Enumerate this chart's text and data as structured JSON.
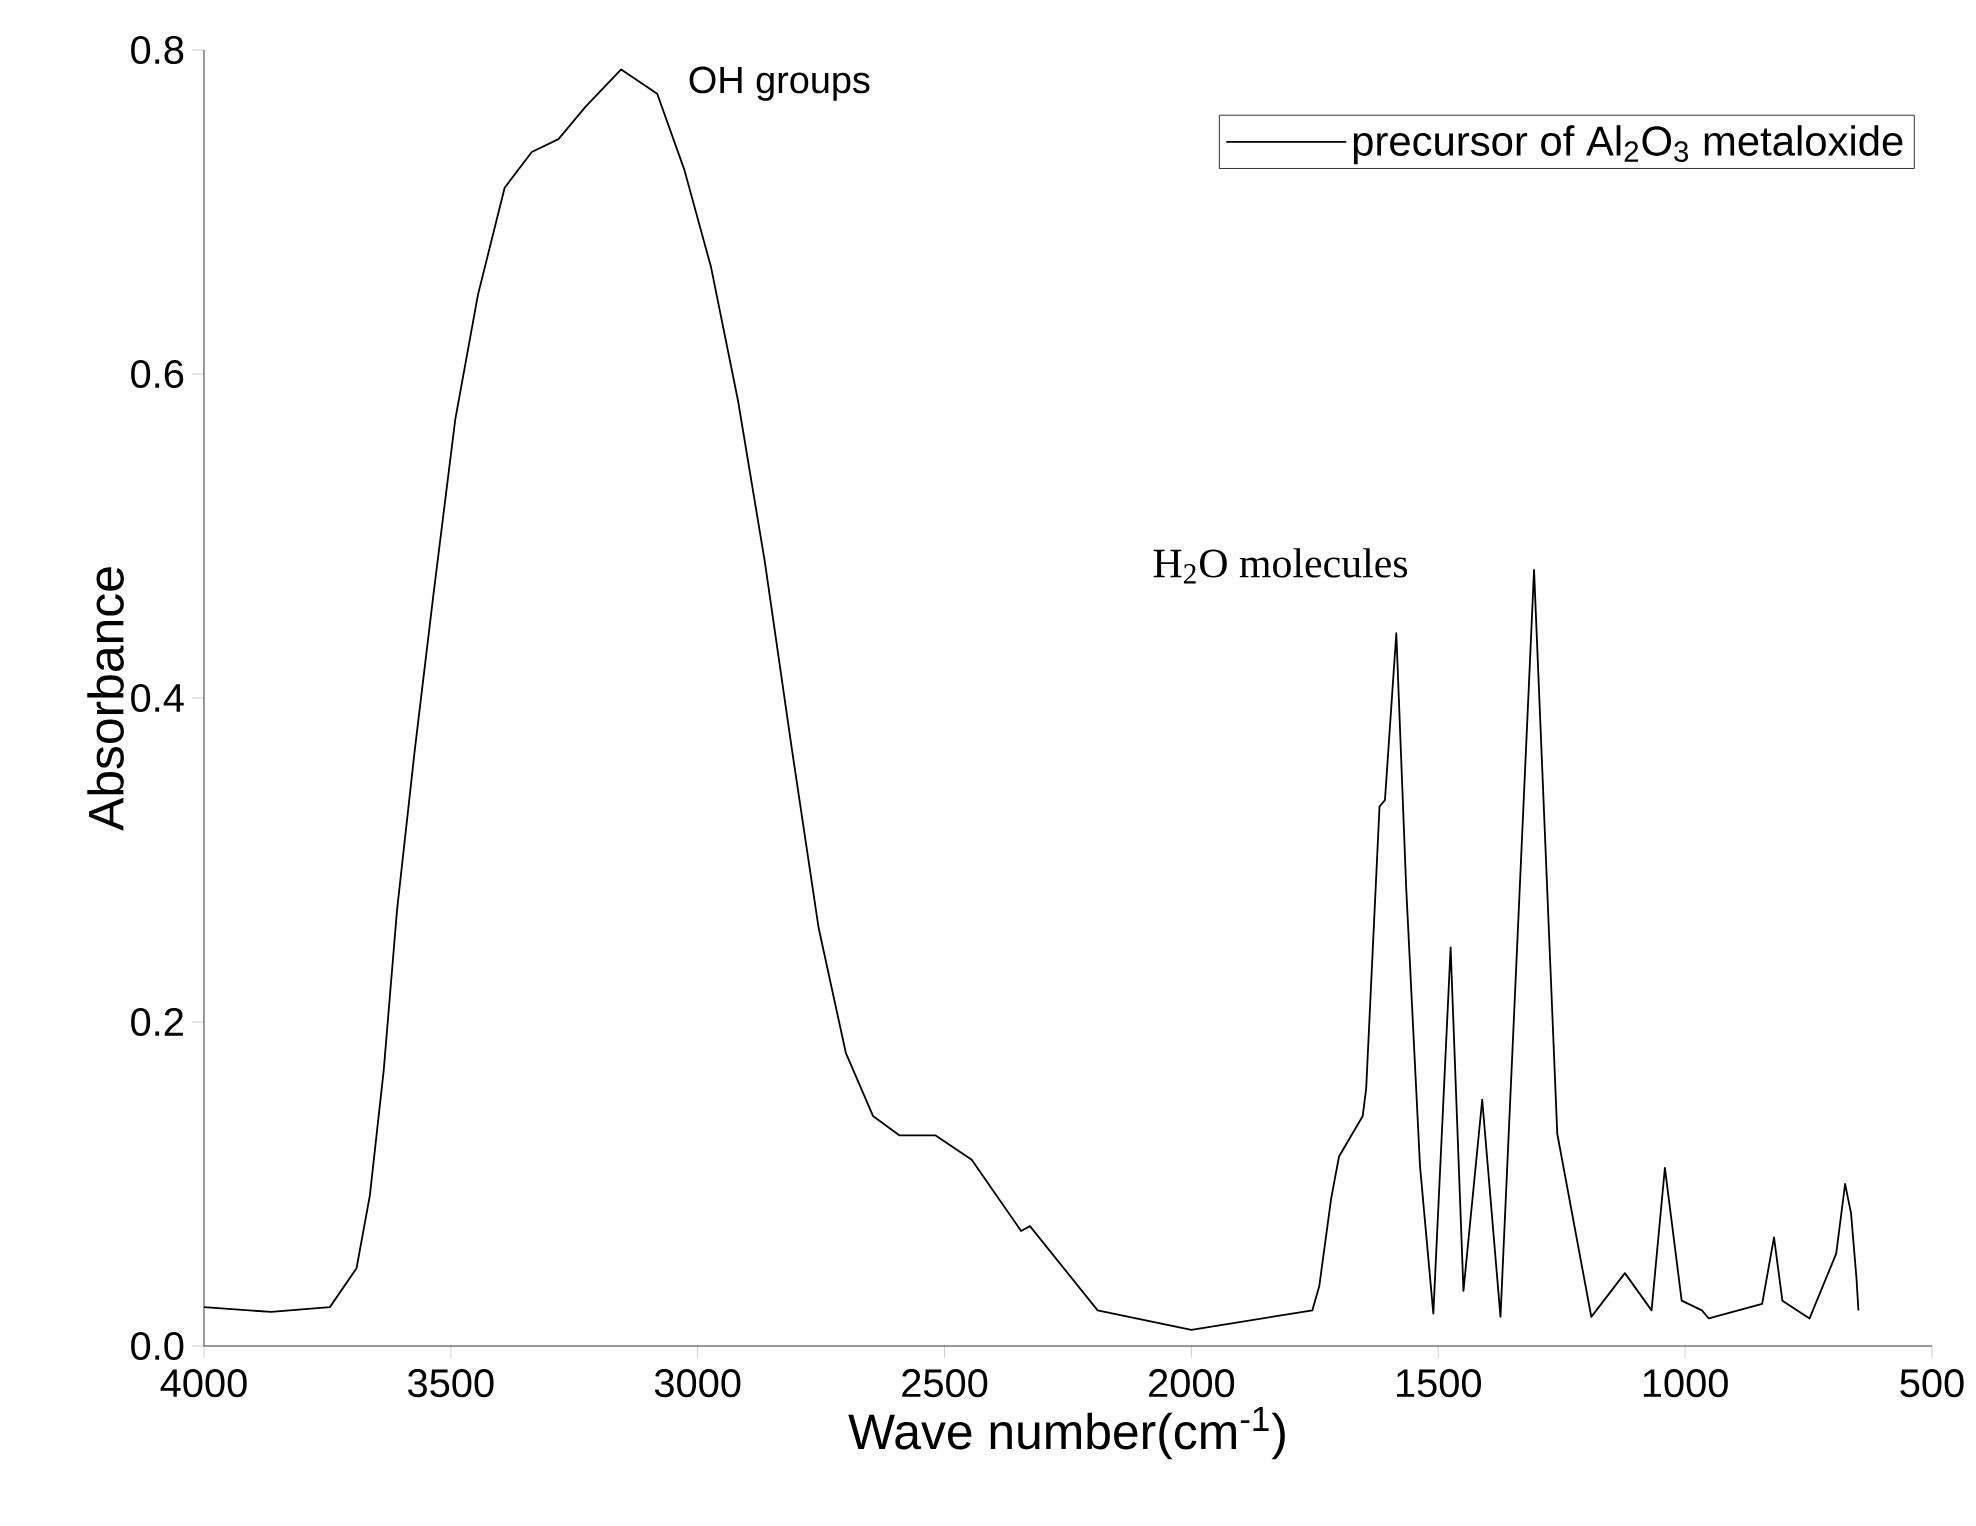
{
  "chart_data": {
    "type": "line",
    "xlabel": "Wave number(cm$^{-1}$)",
    "ylabel": "Absorbance",
    "xlim": [
      4000,
      500
    ],
    "ylim": [
      0,
      0.8
    ],
    "xticks": [
      4000,
      3500,
      3000,
      2500,
      2000,
      1500,
      1000,
      500
    ],
    "yticks": [
      {
        "value": 0,
        "label": "0.0"
      },
      0.2,
      0.4,
      0.6,
      0.8
    ],
    "legend": "top right",
    "grid": false,
    "marker": "none",
    "line_style": "solid",
    "annotations": [
      "OH groups",
      "H$_{2}$O molecules"
    ],
    "series": [
      {
        "name": "precursor of Al$_{2}$O$_{3}$ metaloxide",
        "color": "#000000",
        "x": [
          4000,
          3864,
          3745,
          3691,
          3664,
          3636,
          3609,
          3573,
          3536,
          3491,
          3445,
          3391,
          3336,
          3282,
          3227,
          3155,
          3082,
          3027,
          2973,
          2918,
          2864,
          2809,
          2755,
          2700,
          2645,
          2591,
          2518,
          2445,
          2345,
          2327,
          2190,
          2000,
          1755,
          1741,
          1717,
          1701,
          1653,
          1646,
          1619,
          1608,
          1585,
          1565,
          1537,
          1510,
          1475,
          1449,
          1411,
          1374,
          1306,
          1259,
          1190,
          1122,
          1068,
          1041,
          1007,
          966,
          952,
          844,
          820,
          803,
          748,
          694,
          676,
          664,
          653,
          649
        ],
        "values": [
          0.024,
          0.021,
          0.024,
          0.048,
          0.093,
          0.17,
          0.269,
          0.368,
          0.462,
          0.572,
          0.649,
          0.715,
          0.737,
          0.745,
          0.765,
          0.788,
          0.773,
          0.726,
          0.666,
          0.583,
          0.484,
          0.368,
          0.258,
          0.181,
          0.142,
          0.13,
          0.13,
          0.115,
          0.071,
          0.074,
          0.022,
          0.01,
          0.022,
          0.037,
          0.091,
          0.117,
          0.142,
          0.159,
          0.333,
          0.337,
          0.44,
          0.283,
          0.111,
          0.02,
          0.246,
          0.034,
          0.152,
          0.018,
          0.479,
          0.131,
          0.018,
          0.045,
          0.022,
          0.11,
          0.028,
          0.022,
          0.017,
          0.026,
          0.067,
          0.028,
          0.017,
          0.057,
          0.1,
          0.082,
          0.042,
          0.022
        ]
      }
    ]
  }
}
